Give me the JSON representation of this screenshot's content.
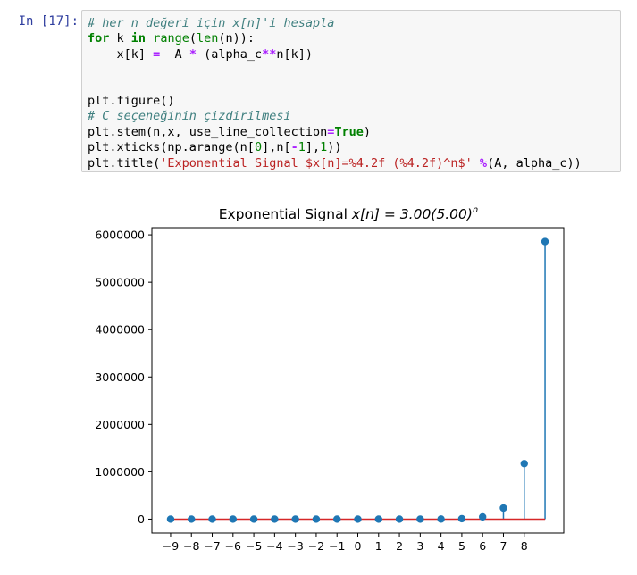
{
  "cell": {
    "prompt": "In [17]:",
    "code": {
      "l1_comment": "# her n değeri için x[n]'i hesapla",
      "l2_for": "for",
      "l2_k": " k ",
      "l2_in": "in",
      "l2_sp": " ",
      "l2_range": "range",
      "l2_lp": "(",
      "l2_len": "len",
      "l2_rest": "(n)):",
      "l3_a": "    x[k] ",
      "l3_eq": "=",
      "l3_b": "  A ",
      "l3_mul": "*",
      "l3_c": " (alpha_c",
      "l3_pow": "**",
      "l3_d": "n[k])",
      "l6": "plt.figure()",
      "l7_comment": "# C seçeneğinin çizdirilmesi",
      "l8_a": "plt.stem(n,x, use_line_collection",
      "l8_eq": "=",
      "l8_true": "True",
      "l8_b": ")",
      "l9_a": "plt.xticks(np.arange(n[",
      "l9_n0": "0",
      "l9_b": "],n[",
      "l9_neg": "-",
      "l9_n1": "1",
      "l9_c": "],",
      "l9_n2": "1",
      "l9_d": "))",
      "l10_a": "plt.title(",
      "l10_str": "'Exponential Signal $x[n]=%4.2f (%4.2f)^n$'",
      "l10_sp": " ",
      "l10_pct": "%",
      "l10_b": "(A, alpha_c))"
    }
  },
  "chart_data": {
    "type": "stem",
    "title_prefix": "Exponential Signal ",
    "title_math": "x[n] = 3.00(5.00)",
    "title_exp": "n",
    "x": [
      -9,
      -8,
      -7,
      -6,
      -5,
      -4,
      -3,
      -2,
      -1,
      0,
      1,
      2,
      3,
      4,
      5,
      6,
      7,
      8,
      9
    ],
    "y": [
      1.5e-06,
      7.7e-06,
      3.84e-05,
      0.000192,
      0.00096,
      0.0048,
      0.024,
      0.12,
      0.6,
      3,
      15,
      75,
      375,
      1875,
      9375,
      46875,
      234375,
      1171875,
      5859375
    ],
    "xticks": [
      "−9",
      "−8",
      "−7",
      "−6",
      "−5",
      "−4",
      "−3",
      "−2",
      "−1",
      "0",
      "1",
      "2",
      "3",
      "4",
      "5",
      "6",
      "7",
      "8"
    ],
    "xtick_values": [
      -9,
      -8,
      -7,
      -6,
      -5,
      -4,
      -3,
      -2,
      -1,
      0,
      1,
      2,
      3,
      4,
      5,
      6,
      7,
      8
    ],
    "yticks": [
      "0",
      "1000000",
      "2000000",
      "3000000",
      "4000000",
      "5000000",
      "6000000"
    ],
    "ytick_values": [
      0,
      1000000,
      2000000,
      3000000,
      4000000,
      5000000,
      6000000
    ],
    "xlim": [
      -9.9,
      9.9
    ],
    "ylim": [
      -292968.75,
      6152343.75
    ],
    "colors": {
      "stem": "#1f77b4",
      "baseline": "#d62728"
    }
  }
}
